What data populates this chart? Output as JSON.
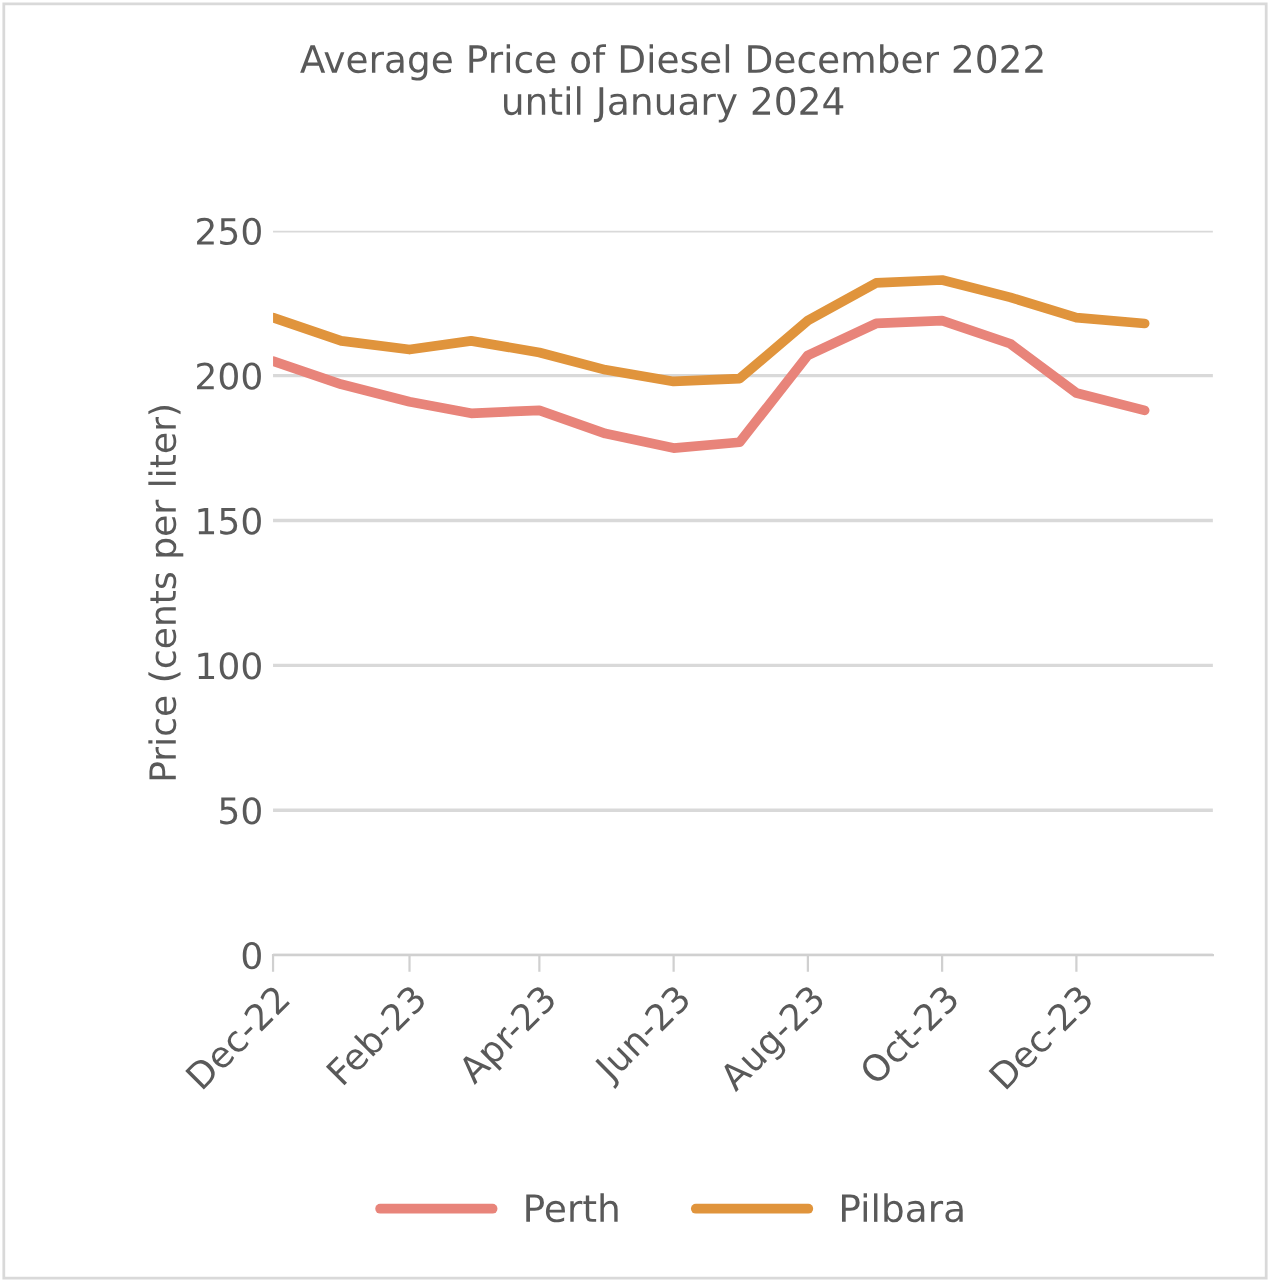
{
  "chart_data": {
    "type": "line",
    "title": "Average Price of Diesel December 2022\nuntil January 2024",
    "ylabel": "Price (cents per liter)",
    "x": [
      "2022-12",
      "2023-01",
      "2023-02",
      "2023-03",
      "2023-04",
      "2023-05",
      "2023-06",
      "2023-07",
      "2023-08",
      "2023-09",
      "2023-10",
      "2023-11",
      "2023-12",
      "2024-01"
    ],
    "series": [
      {
        "name": "Perth",
        "color": "#e8847a",
        "values": [
          205,
          197,
          191,
          187,
          188,
          180,
          175,
          177,
          207,
          218,
          219,
          211,
          194,
          188
        ]
      },
      {
        "name": "Pilbara",
        "color": "#e0943c",
        "values": [
          220,
          212,
          209,
          212,
          208,
          202,
          198,
          199,
          219,
          232,
          233,
          227,
          220,
          218
        ]
      }
    ],
    "xlim": [
      "2022-12",
      "2024-02"
    ],
    "xticks": [
      {
        "value": "2022-12",
        "label": "Dec-22"
      },
      {
        "value": "2023-02",
        "label": "Feb-23"
      },
      {
        "value": "2023-04",
        "label": "Apr-23"
      },
      {
        "value": "2023-06",
        "label": "Jun-23"
      },
      {
        "value": "2023-08",
        "label": "Aug-23"
      },
      {
        "value": "2023-10",
        "label": "Oct-23"
      },
      {
        "value": "2023-12",
        "label": "Dec-23"
      }
    ],
    "ylim": [
      0,
      250
    ],
    "yticks": [
      0,
      50,
      100,
      150,
      200,
      250
    ],
    "grid": "y",
    "legend": "bottom",
    "marker": "none",
    "line_style": "solid"
  }
}
